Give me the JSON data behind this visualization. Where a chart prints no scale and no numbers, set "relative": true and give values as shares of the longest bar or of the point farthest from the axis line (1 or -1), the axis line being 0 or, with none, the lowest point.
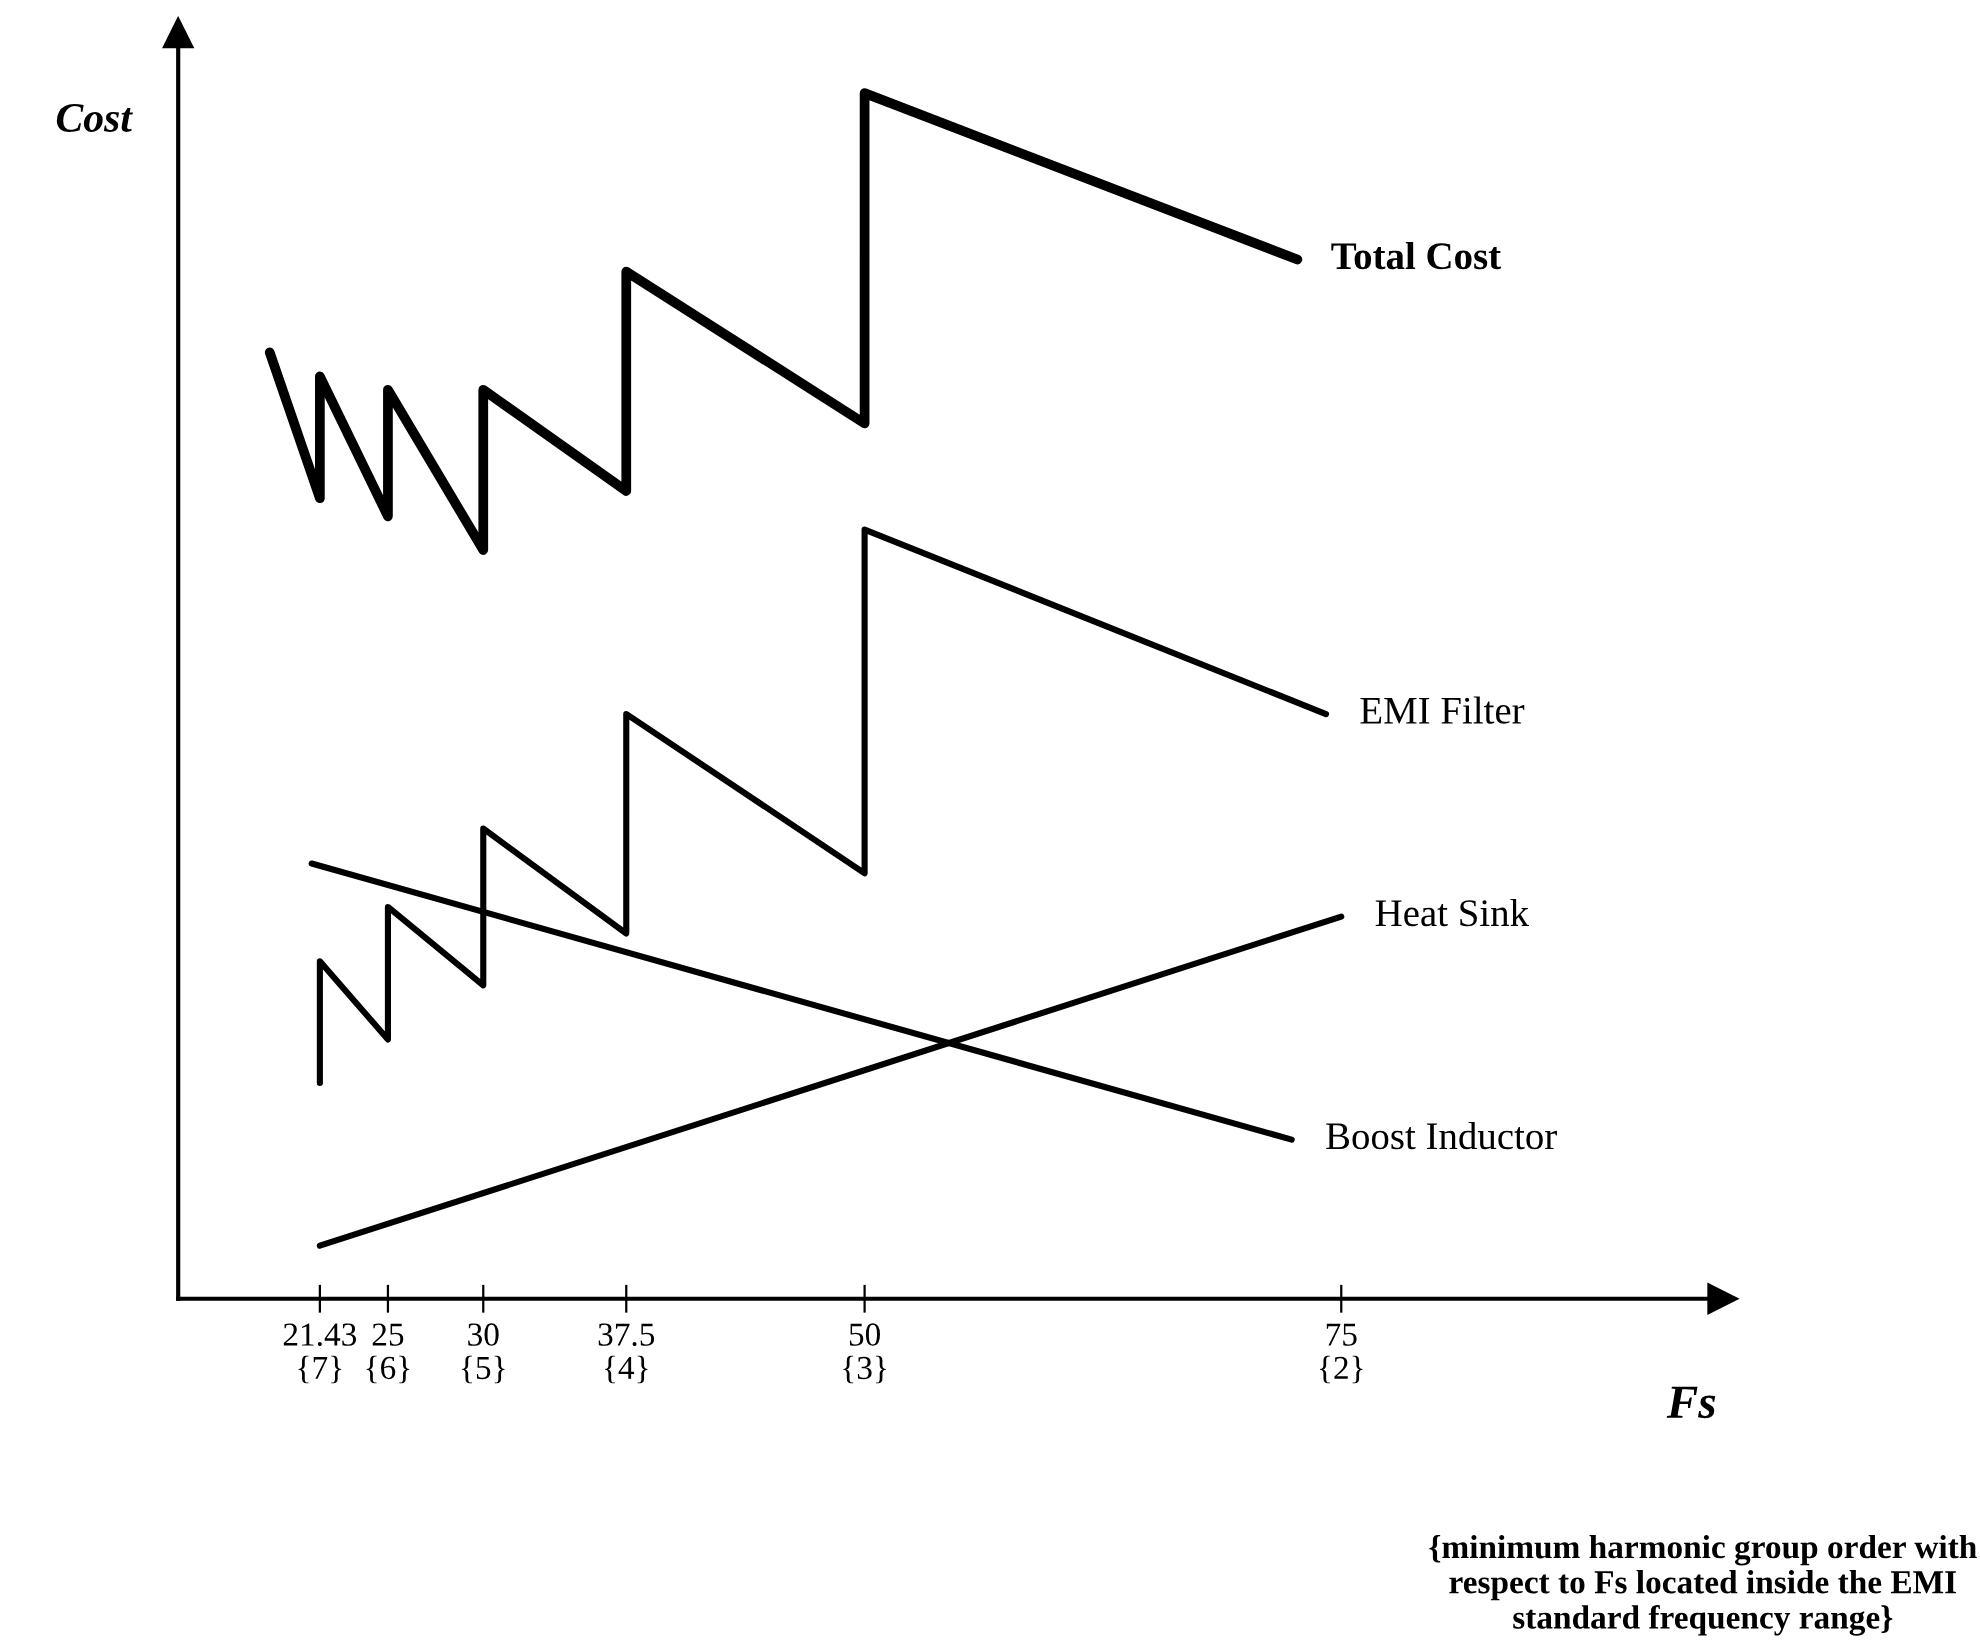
{
  "chart_data": {
    "type": "line",
    "relative": true,
    "ylabel": "Cost",
    "xlabel": "Fs",
    "annotations": [
      "{minimum harmonic group order with respect to Fs located inside the EMI standard frequency range}",
      "{7}",
      "{6}",
      "{5}",
      "{4}",
      "{3}",
      "{2}"
    ],
    "xlim": [
      14,
      95
    ],
    "xticks": [
      21.43,
      25,
      30,
      37.5,
      50,
      75
    ],
    "grid": false,
    "marker": "none",
    "line_style": "solid",
    "series": [
      {
        "name": "Total Cost",
        "color": "#000000",
        "x": [
          18.8,
          21.43,
          21.43,
          25,
          25,
          30,
          30,
          37.5,
          37.5,
          50,
          50,
          72.7
        ],
        "values": [
          0.785,
          0.664,
          0.765,
          0.649,
          0.754,
          0.621,
          0.754,
          0.67,
          0.852,
          0.726,
          1,
          0.862
        ]
      },
      {
        "name": "EMI Filter",
        "color": "#000000",
        "x": [
          21.43,
          21.43,
          25,
          25,
          30,
          30,
          37.5,
          37.5,
          50,
          50,
          74.2
        ],
        "values": [
          0.179,
          0.28,
          0.215,
          0.325,
          0.26,
          0.39,
          0.303,
          0.485,
          0.353,
          0.638,
          0.485
        ]
      },
      {
        "name": "Heat Sink",
        "color": "#000000",
        "x": [
          21.43,
          75
        ],
        "values": [
          0.044,
          0.317
        ]
      },
      {
        "name": "Boost Inductor",
        "color": "#000000",
        "x": [
          21.0,
          72.4
        ],
        "values": [
          0.361,
          0.132
        ]
      }
    ]
  }
}
